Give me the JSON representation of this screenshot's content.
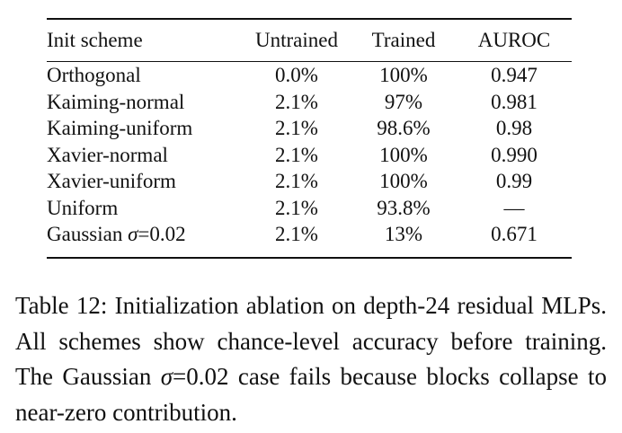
{
  "table": {
    "headers": {
      "scheme": "Init scheme",
      "untrained": "Untrained",
      "trained": "Trained",
      "auroc": "AUROC"
    },
    "rows": [
      {
        "scheme": "Orthogonal",
        "untrained": "0.0%",
        "trained": "100%",
        "auroc": "0.947"
      },
      {
        "scheme": "Kaiming-normal",
        "untrained": "2.1%",
        "trained": "97%",
        "auroc": "0.981"
      },
      {
        "scheme": "Kaiming-uniform",
        "untrained": "2.1%",
        "trained": "98.6%",
        "auroc": "0.98"
      },
      {
        "scheme": "Xavier-normal",
        "untrained": "2.1%",
        "trained": "100%",
        "auroc": "0.990"
      },
      {
        "scheme": "Xavier-uniform",
        "untrained": "2.1%",
        "trained": "100%",
        "auroc": "0.99"
      },
      {
        "scheme": "Uniform",
        "untrained": "2.1%",
        "trained": "93.8%",
        "auroc": "—"
      },
      {
        "scheme": "Gaussian σ=0.02",
        "untrained": "2.1%",
        "trained": "13%",
        "auroc": "0.671"
      }
    ]
  },
  "caption": {
    "text": "Table 12: Initialization ablation on depth-24 residual MLPs. All schemes show chance-level accuracy before training. The Gaussian σ=0.02 case fails because blocks collapse to near-zero contribution."
  }
}
